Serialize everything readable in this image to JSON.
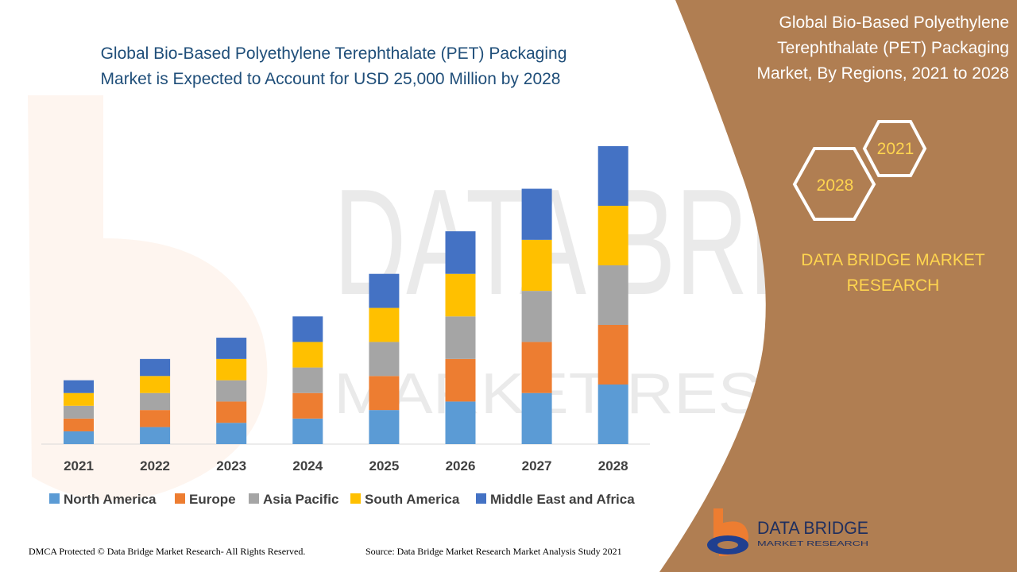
{
  "chart_title_lines": [
    "Global Bio-Based Polyethylene Terephthalate (PET) Packaging",
    "Market is Expected to Account for USD 25,000 Million by 2028"
  ],
  "side_panel": {
    "title_lines": [
      "Global Bio-Based Polyethylene",
      "Terephthalate (PET) Packaging",
      "Market, By Regions, 2021 to 2028"
    ],
    "hex_labels": [
      "2028",
      "2021"
    ],
    "brand_lines": [
      "DATA BRIDGE MARKET",
      "RESEARCH"
    ],
    "logo_text": "DATA BRIDGE",
    "logo_subtext": "MARKET RESEARCH",
    "background_color": "#b07e52"
  },
  "footer": {
    "left": "DMCA Protected © Data Bridge Market Research- All Rights Reserved.",
    "right": "Source: Data Bridge Market Research Market Analysis Study 2021"
  },
  "watermark": {
    "main": "DATA BRIDGE",
    "sub": "MARKET RESEARCH"
  },
  "chart_data": {
    "type": "bar",
    "stacked": true,
    "categories": [
      "2021",
      "2022",
      "2023",
      "2024",
      "2025",
      "2026",
      "2027",
      "2028"
    ],
    "series": [
      {
        "name": "North America",
        "color": "#5b9bd5",
        "values": [
          3.0,
          4.0,
          5.0,
          6.0,
          8.0,
          10.0,
          12.0,
          14.0
        ]
      },
      {
        "name": "Europe",
        "color": "#ed7d31",
        "values": [
          3.0,
          4.0,
          5.0,
          6.0,
          8.0,
          10.0,
          12.0,
          14.0
        ]
      },
      {
        "name": "Asia Pacific",
        "color": "#a5a5a5",
        "values": [
          3.0,
          4.0,
          5.0,
          6.0,
          8.0,
          10.0,
          12.0,
          14.0
        ]
      },
      {
        "name": "South America",
        "color": "#ffc000",
        "values": [
          3.0,
          4.0,
          5.0,
          6.0,
          8.0,
          10.0,
          12.0,
          14.0
        ]
      },
      {
        "name": "Middle East and Africa",
        "color": "#4472c4",
        "values": [
          3.0,
          4.0,
          5.0,
          6.0,
          8.0,
          10.0,
          12.0,
          14.0
        ]
      }
    ],
    "y_axis_visible": false,
    "grid": false,
    "legend": "bottom"
  }
}
